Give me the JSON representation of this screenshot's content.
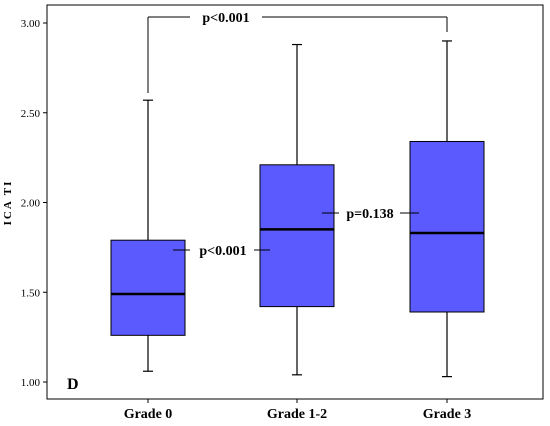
{
  "chart_data": {
    "type": "box",
    "panel_label": "D",
    "ylabel": "ICA TI",
    "xlabel": "",
    "ylim": [
      1.0,
      3.0
    ],
    "yticks": [
      "1.00",
      "1.50",
      "2.00",
      "2.50",
      "3.00"
    ],
    "categories": [
      "Grade 0",
      "Grade 1-2",
      "Grade 3"
    ],
    "boxes": [
      {
        "category": "Grade 0",
        "min": 1.06,
        "q1": 1.26,
        "median": 1.49,
        "q3": 1.79,
        "max": 2.57
      },
      {
        "category": "Grade 1-2",
        "min": 1.04,
        "q1": 1.42,
        "median": 1.85,
        "q3": 2.21,
        "max": 2.88
      },
      {
        "category": "Grade 3",
        "min": 1.03,
        "q1": 1.39,
        "median": 1.83,
        "q3": 2.34,
        "max": 2.9
      }
    ],
    "box_color": "#5a5aff",
    "grid": false,
    "annotations": [
      {
        "text": "p<0.001",
        "from": "Grade 0",
        "to": "Grade 3",
        "type": "bracket-top"
      },
      {
        "text": "p<0.001",
        "from": "Grade 0",
        "to": "Grade 1-2",
        "type": "between"
      },
      {
        "text": "p=0.138",
        "from": "Grade 1-2",
        "to": "Grade 3",
        "type": "between"
      }
    ]
  }
}
